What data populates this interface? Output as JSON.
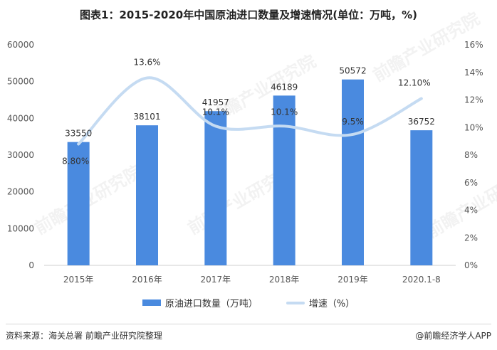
{
  "title": "图表1：2015-2020年中国原油进口数量及增速情况(单位：万吨，%)",
  "source": "资料来源：海关总署  前瞻产业研究院整理",
  "credit": "@前瞻经济学人APP",
  "watermark": "前瞻产业研究院",
  "colors": {
    "bar": "#4a8adf",
    "line": "#c5dbf2"
  },
  "chart_data": {
    "type": "bar",
    "categories": [
      "2015年",
      "2016年",
      "2017年",
      "2018年",
      "2019年",
      "2020.1-8"
    ],
    "series": [
      {
        "name": "原油进口数量（万吨）",
        "type": "bar",
        "axis": "left",
        "values": [
          33550,
          38101,
          41957,
          46189,
          50572,
          36752
        ],
        "labels": [
          "33550",
          "38101",
          "41957",
          "46189",
          "50572",
          "36752"
        ]
      },
      {
        "name": "增速（%）",
        "type": "line",
        "axis": "right",
        "smooth": true,
        "values": [
          8.8,
          13.6,
          10.1,
          10.1,
          9.5,
          12.1
        ],
        "labels": [
          "8.80%",
          "13.6%",
          "10.1%",
          "10.1%",
          "9.5%",
          "12.10%"
        ]
      }
    ],
    "y_left": {
      "lim": [
        0,
        60000
      ],
      "ticks": [
        "0",
        "10000",
        "20000",
        "30000",
        "40000",
        "50000",
        "60000"
      ]
    },
    "y_right": {
      "lim": [
        0,
        16
      ],
      "ticks": [
        "0%",
        "2%",
        "4%",
        "6%",
        "8%",
        "10%",
        "12%",
        "14%",
        "16%"
      ]
    },
    "grid": false,
    "legend": "bottom"
  }
}
